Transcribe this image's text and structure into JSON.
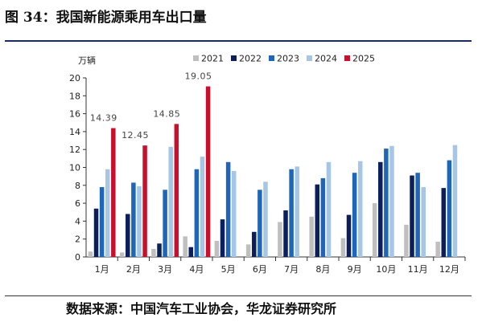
{
  "figure": {
    "title": "图 34：我国新能源乘用车出口量",
    "source": "数据来源：中国汽车工业协会，华龙证券研究所"
  },
  "chart_data": {
    "type": "bar",
    "title": "",
    "ylabel": "万辆",
    "xlabel": "",
    "ylim": [
      0,
      20
    ],
    "yticks": [
      0,
      2,
      4,
      6,
      8,
      10,
      12,
      14,
      16,
      18,
      20
    ],
    "grid": false,
    "legend_position": "top",
    "categories": [
      "1月",
      "2月",
      "3月",
      "4月",
      "5月",
      "6月",
      "7月",
      "8月",
      "9月",
      "10月",
      "11月",
      "12月"
    ],
    "series": [
      {
        "name": "2021",
        "color": "#bfbfbf",
        "values": [
          0.6,
          0.5,
          0.9,
          2.3,
          1.8,
          1.4,
          3.9,
          4.5,
          2.1,
          6.0,
          3.6,
          1.7
        ]
      },
      {
        "name": "2022",
        "color": "#0b1f5c",
        "values": [
          5.4,
          4.8,
          1.5,
          1.1,
          4.2,
          2.8,
          5.2,
          8.1,
          4.7,
          10.6,
          9.1,
          7.7
        ]
      },
      {
        "name": "2023",
        "color": "#1f66b8",
        "values": [
          7.8,
          8.3,
          7.5,
          9.8,
          10.6,
          7.5,
          9.8,
          8.8,
          9.4,
          12.1,
          9.4,
          10.8
        ]
      },
      {
        "name": "2024",
        "color": "#a6c6e6",
        "values": [
          9.8,
          7.9,
          12.3,
          11.2,
          9.6,
          8.4,
          10.1,
          10.6,
          10.7,
          12.4,
          7.8,
          12.5
        ]
      },
      {
        "name": "2025",
        "color": "#c8102e",
        "values": [
          14.39,
          12.45,
          14.85,
          19.05,
          null,
          null,
          null,
          null,
          null,
          null,
          null,
          null
        ]
      }
    ],
    "data_labels": [
      {
        "series": "2025",
        "category": "1月",
        "text": "14.39"
      },
      {
        "series": "2025",
        "category": "2月",
        "text": "12.45"
      },
      {
        "series": "2025",
        "category": "3月",
        "text": "14.85"
      },
      {
        "series": "2025",
        "category": "4月",
        "text": "19.05"
      }
    ]
  }
}
